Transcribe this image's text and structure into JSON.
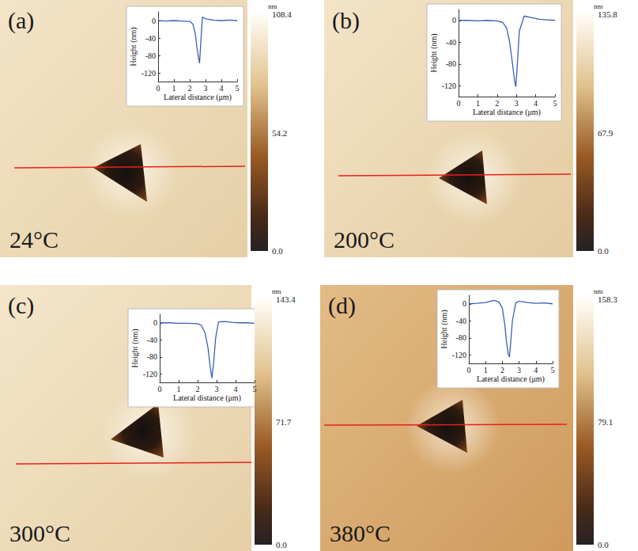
{
  "chart_data": [
    {
      "type": "line",
      "panel": "(a)",
      "title": "24°C",
      "color": "#3a60b5",
      "xlabel": "Lateral distance (μm)",
      "ylabel": "Height (nm)",
      "x": [
        0,
        0.5,
        1,
        1.5,
        2,
        2.2,
        2.35,
        2.45,
        2.55,
        2.62,
        2.7,
        2.8,
        3,
        3.5,
        4,
        4.5,
        5
      ],
      "values": [
        0,
        -1,
        0,
        -1,
        -2,
        -8,
        -30,
        -60,
        -85,
        -98,
        -50,
        8,
        4,
        1,
        0,
        1,
        0
      ],
      "xlim": [
        0,
        5
      ],
      "xticks": [
        0,
        1,
        2,
        3,
        4,
        5
      ],
      "ylim": [
        -140,
        20
      ],
      "yticks": [
        -120,
        -80,
        -40,
        0
      ],
      "colorbar": {
        "unit": "nm",
        "range": [
          0,
          108.4
        ],
        "ticks": [
          {
            "value": 0,
            "label": "0.0"
          },
          54.2,
          108.4
        ]
      }
    },
    {
      "type": "line",
      "panel": "(b)",
      "title": "200°C",
      "color": "#3a60b5",
      "xlabel": "Lateral distance (μm)",
      "ylabel": "Height (nm)",
      "x": [
        0,
        0.5,
        1,
        1.5,
        2,
        2.3,
        2.5,
        2.65,
        2.8,
        2.9,
        2.97,
        3.05,
        3.15,
        3.4,
        3.8,
        4.2,
        4.6,
        5
      ],
      "values": [
        0,
        0,
        -1,
        0,
        -1,
        -4,
        -15,
        -40,
        -80,
        -110,
        -122,
        -80,
        -20,
        8,
        5,
        2,
        1,
        0
      ],
      "xlim": [
        0,
        5
      ],
      "xticks": [
        0,
        1,
        2,
        3,
        4,
        5
      ],
      "ylim": [
        -140,
        20
      ],
      "yticks": [
        -120,
        -80,
        -40,
        0
      ],
      "colorbar": {
        "unit": "nm",
        "range": [
          0,
          135.8
        ],
        "ticks": [
          {
            "value": 0,
            "label": "0.0"
          },
          67.9,
          135.8
        ]
      }
    },
    {
      "type": "line",
      "panel": "(c)",
      "title": "300°C",
      "color": "#3a60b5",
      "xlabel": "Lateral distance (μm)",
      "ylabel": "Height (nm)",
      "x": [
        0,
        0.5,
        1,
        1.5,
        2,
        2.2,
        2.4,
        2.55,
        2.65,
        2.75,
        2.85,
        2.95,
        3.1,
        3.4,
        3.8,
        4.2,
        4.6,
        5
      ],
      "values": [
        0,
        0,
        -1,
        -1,
        -2,
        -6,
        -25,
        -60,
        -100,
        -130,
        -90,
        -35,
        2,
        3,
        1,
        0,
        0,
        -1
      ],
      "xlim": [
        0,
        5
      ],
      "xticks": [
        0,
        1,
        2,
        3,
        4,
        5
      ],
      "ylim": [
        -140,
        20
      ],
      "yticks": [
        -120,
        -80,
        -40,
        0
      ],
      "colorbar": {
        "unit": "nm",
        "range": [
          0,
          143.4
        ],
        "ticks": [
          {
            "value": 0,
            "label": "0.0"
          },
          71.7,
          143.4
        ]
      }
    },
    {
      "type": "line",
      "panel": "(d)",
      "title": "380°C",
      "color": "#3a60b5",
      "xlabel": "Lateral distance (μm)",
      "ylabel": "Height (nm)",
      "x": [
        0,
        0.5,
        1,
        1.5,
        1.8,
        2,
        2.15,
        2.25,
        2.35,
        2.42,
        2.5,
        2.6,
        2.8,
        3,
        3.5,
        4,
        4.5,
        5
      ],
      "values": [
        0,
        1,
        3,
        8,
        4,
        -10,
        -50,
        -90,
        -118,
        -125,
        -90,
        -40,
        2,
        6,
        3,
        1,
        2,
        0
      ],
      "xlim": [
        0,
        5
      ],
      "xticks": [
        0,
        1,
        2,
        3,
        4,
        5
      ],
      "ylim": [
        -140,
        20
      ],
      "yticks": [
        -120,
        -80,
        -40,
        0
      ],
      "colorbar": {
        "unit": "nm",
        "range": [
          0,
          158.3
        ],
        "ticks": [
          {
            "value": 0,
            "label": "0.0"
          },
          79.1,
          158.3
        ]
      }
    }
  ]
}
